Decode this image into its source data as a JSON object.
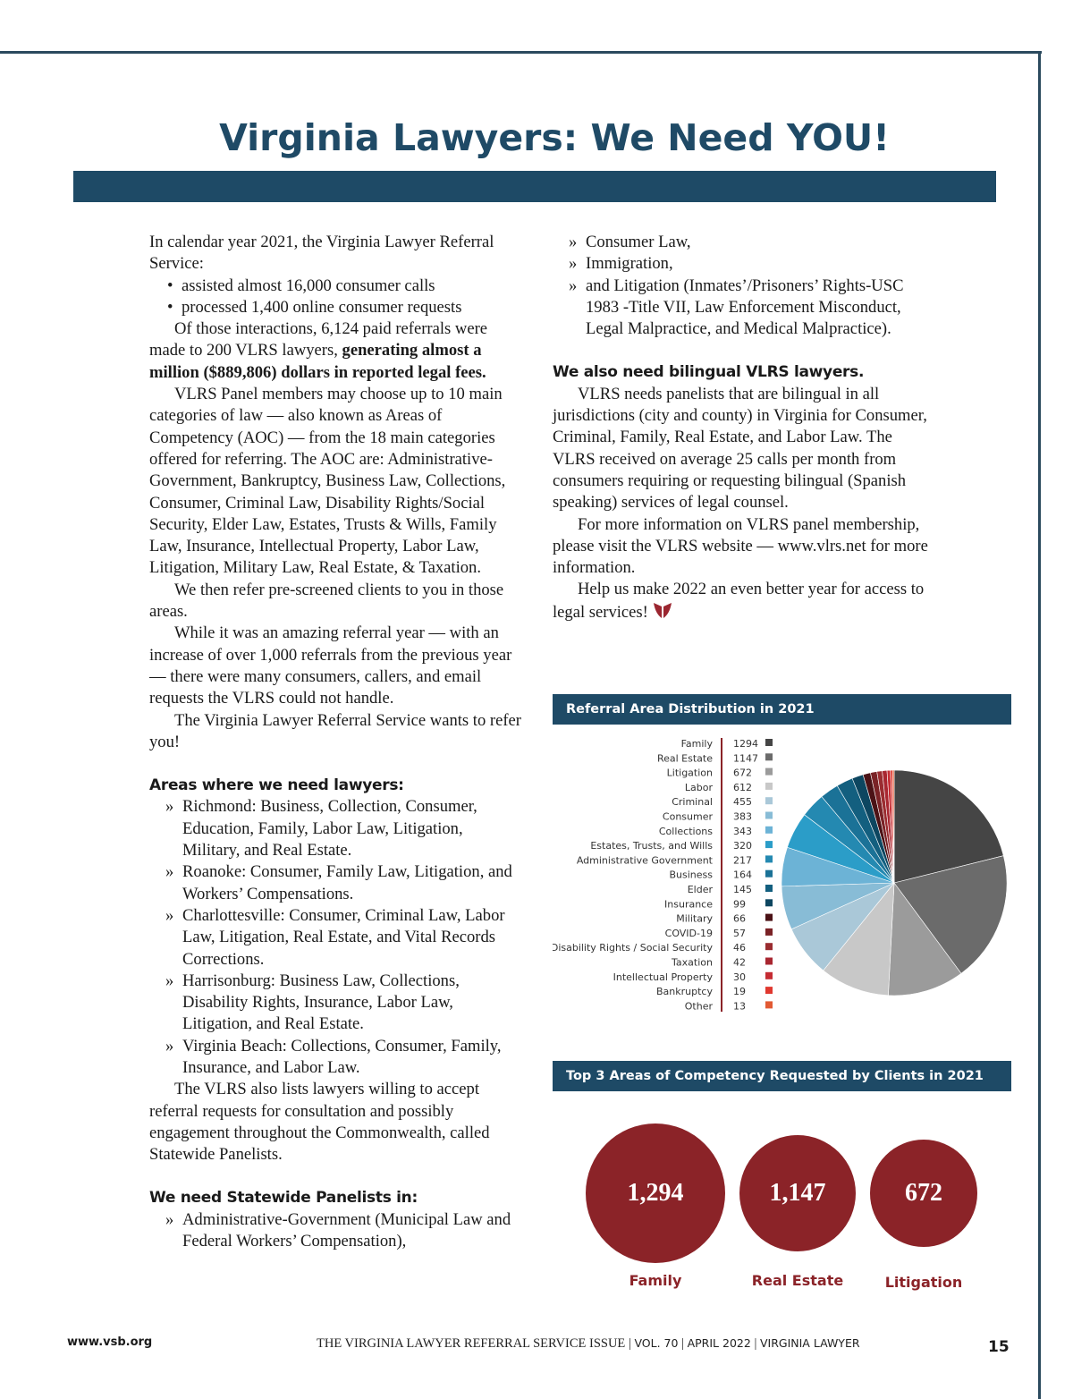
{
  "title": "Virginia Lawyers: We Need YOU!",
  "left": {
    "intro": "In calendar year 2021, the Virginia Lawyer Referral Service:",
    "bullets": [
      "assisted almost 16,000 consumer calls",
      "processed 1,400 online consumer requests"
    ],
    "p1a": "Of those interactions, 6,124 paid referrals were made to 200 VLRS lawyers, ",
    "p1b": "generating almost a million ($889,806) dollars in reported legal fees.",
    "p2": "VLRS Panel members may choose up to 10 main categories of law — also known as Areas of Competency (AOC) — from the 18 main categories offered for referring. The AOC are: Administrative-Government, Bankruptcy, Business Law, Collections, Consumer, Criminal Law, Disability Rights/Social Security, Elder Law, Estates, Trusts & Wills, Family Law, Insurance, Intellectual Property, Labor Law, Litigation, Military Law, Real Estate, & Taxation.",
    "p3": "We then refer pre-screened clients to you in those areas.",
    "p4": "While it was an amazing referral year — with an increase of over 1,000 referrals from the previous year — there were many consumers, callers, and email requests the VLRS could not handle.",
    "p5": "The Virginia Lawyer Referral Service wants to refer you!",
    "areas_heading": "Areas where we need lawyers:",
    "areas": [
      "Richmond: Business, Collection, Consumer, Education, Family, Labor Law, Litigation, Military, and Real Estate.",
      "Roanoke: Consumer, Family Law, Litigation, and Workers’ Compensations.",
      "Charlottesville: Consumer, Criminal Law, Labor Law, Litigation, Real Estate, and Vital Records Corrections.",
      "Harrisonburg: Business Law, Collections, Disability Rights, Insurance, Labor Law, Litigation, and Real Estate.",
      "Virginia Beach: Collections, Consumer, Family, Insurance, and Labor Law."
    ],
    "p6": "The VLRS also lists lawyers willing to accept referral requests for consultation and possibly engagement throughout the Commonwealth, called Statewide Panelists.",
    "statewide_heading": "We need Statewide Panelists in:",
    "statewide": [
      "Administrative-Government (Municipal Law and Federal Workers’ Compensation),"
    ]
  },
  "right": {
    "statewide_cont": [
      "Consumer Law,",
      "Immigration,",
      "and Litigation (Inmates’/Prisoners’ Rights-USC 1983 -Title VII, Law Enforcement Misconduct, Legal Malpractice, and Medical Malpractice)."
    ],
    "bilingual_heading": "We also need bilingual VLRS lawyers.",
    "p1": "VLRS needs panelists that are bilingual in all jurisdictions (city and county) in Virginia for Consumer, Criminal, Family, Real Estate, and Labor Law. The VLRS received on average 25 calls per month from consumers requiring or requesting bilingual (Spanish speaking) services of legal counsel.",
    "p2": "For more information on VLRS panel membership, please visit the VLRS website — www.vlrs.net for more information.",
    "p3": "Help us make 2022 an even better year for access to legal services!"
  },
  "chart_data": [
    {
      "type": "pie",
      "title": "Referral Area Distribution in 2021",
      "categories": [
        "Family",
        "Real Estate",
        "Litigation",
        "Labor",
        "Criminal",
        "Consumer",
        "Collections",
        "Estates, Trusts, and Wills",
        "Administrative Government",
        "Business",
        "Elder",
        "Insurance",
        "Military",
        "COVID-19",
        "Disability Rights / Social Security",
        "Taxation",
        "Intellectual Property",
        "Bankruptcy",
        "Other"
      ],
      "values": [
        1294,
        1147,
        672,
        612,
        455,
        383,
        343,
        320,
        217,
        164,
        145,
        99,
        66,
        57,
        46,
        42,
        30,
        19,
        13
      ],
      "colors": [
        "#454545",
        "#6b6b6b",
        "#9b9b9b",
        "#c8c8c8",
        "#aac8d8",
        "#88bcd6",
        "#6cb3d6",
        "#2b9dc8",
        "#2489b1",
        "#1b7297",
        "#135f7f",
        "#0d4660",
        "#4b1216",
        "#7a2226",
        "#9a2c30",
        "#a82630",
        "#c52c33",
        "#e0382f",
        "#e25a33"
      ],
      "legend": "left"
    },
    {
      "type": "bar",
      "title": "Top 3 Areas of Competency Requested by Clients in 2021",
      "categories": [
        "Family",
        "Real Estate",
        "Litigation"
      ],
      "labels": [
        "1,294",
        "1,147",
        "672"
      ],
      "values": [
        1294,
        1147,
        672
      ],
      "color": "#8b2328"
    }
  ],
  "footer": {
    "site": "www.vsb.org",
    "issue": "THE VIRGINIA LAWYER REFERRAL SERVICE ISSUE",
    "vol": "VOL. 70",
    "date": "APRIL 2022",
    "pub": "VIRGINIA LAWYER",
    "page": "15"
  }
}
